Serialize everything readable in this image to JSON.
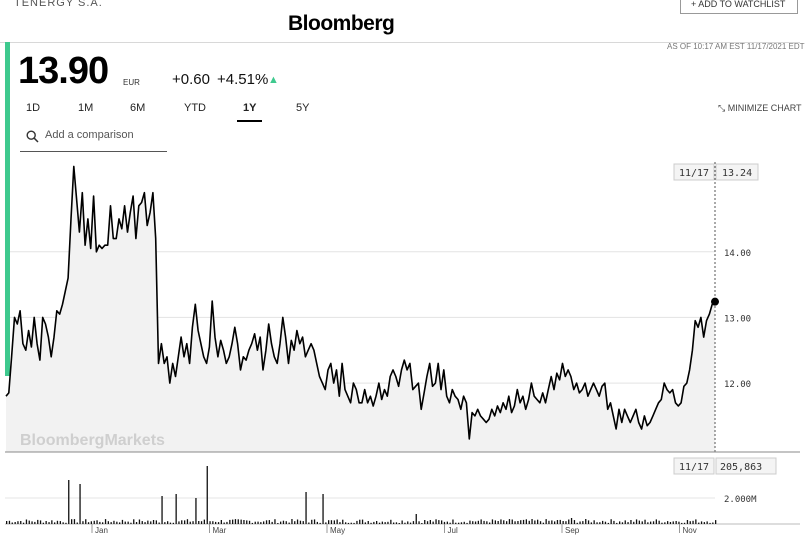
{
  "header": {
    "logo": "Bloomberg",
    "ticker_cut": "TENERGY S.A.",
    "watchlist_label": "+ ADD TO WATCHLIST",
    "as_of": "AS OF 10:17 AM EST 11/17/2021 EDT"
  },
  "quote": {
    "price": "13.90",
    "currency": "EUR",
    "change": "+0.60",
    "change_pct": "+4.51%",
    "up_color": "#3ec98e"
  },
  "tabs": [
    {
      "label": "1D"
    },
    {
      "label": "1M"
    },
    {
      "label": "6M"
    },
    {
      "label": "YTD"
    },
    {
      "label": "1Y",
      "active": true
    },
    {
      "label": "5Y"
    }
  ],
  "minimize_label": "MINIMIZE CHART",
  "search": {
    "placeholder": "Add a comparison"
  },
  "watermark": "BloombergMarkets",
  "chart_data": {
    "type": "line",
    "title": "",
    "y_ticks": [
      12.0,
      13.0,
      14.0
    ],
    "ylim": [
      10.95,
      15.55
    ],
    "x_ticks": [
      "Jan",
      "Mar",
      "May",
      "Jul",
      "Sep",
      "Nov"
    ],
    "cursor": {
      "date_label": "11/17",
      "price_label": "13.24",
      "volume_label": "205,863"
    },
    "price_series": [
      11.8,
      11.85,
      12.4,
      13.0,
      12.9,
      13.1,
      12.6,
      12.5,
      12.8,
      12.55,
      13.0,
      12.6,
      12.35,
      13.0,
      12.9,
      12.7,
      12.4,
      12.7,
      13.1,
      13.05,
      13.2,
      13.4,
      13.6,
      14.5,
      15.3,
      14.8,
      14.3,
      14.9,
      14.1,
      14.5,
      14.05,
      14.85,
      14.0,
      14.1,
      14.05,
      14.1,
      14.1,
      14.7,
      14.2,
      14.2,
      14.5,
      14.35,
      14.7,
      14.3,
      14.6,
      14.85,
      14.2,
      14.7,
      14.75,
      14.9,
      14.4,
      14.6,
      14.9,
      14.2,
      12.3,
      12.6,
      12.3,
      12.4,
      12.0,
      12.3,
      12.1,
      12.4,
      12.7,
      12.4,
      12.6,
      12.3,
      12.85,
      13.2,
      12.8,
      12.6,
      12.4,
      12.3,
      12.55,
      13.25,
      12.7,
      12.4,
      12.65,
      12.5,
      12.3,
      12.4,
      12.6,
      12.85,
      12.6,
      12.2,
      12.4,
      12.35,
      12.5,
      12.6,
      12.75,
      12.5,
      12.7,
      12.2,
      12.5,
      12.9,
      12.6,
      12.4,
      12.3,
      12.6,
      13.0,
      12.7,
      12.3,
      12.65,
      12.5,
      12.8,
      12.6,
      12.7,
      12.4,
      12.5,
      12.6,
      12.5,
      12.3,
      12.1,
      12.0,
      11.9,
      12.2,
      12.3,
      12.0,
      12.2,
      11.8,
      12.3,
      11.9,
      11.8,
      11.7,
      12.0,
      11.9,
      11.7,
      11.7,
      11.9,
      11.7,
      11.8,
      11.65,
      11.8,
      12.0,
      11.75,
      11.9,
      11.8,
      12.1,
      12.2,
      12.1,
      11.95,
      12.2,
      12.35,
      12.2,
      12.3,
      11.9,
      11.95,
      12.0,
      11.6,
      11.85,
      12.1,
      12.3,
      11.95,
      12.0,
      12.3,
      11.9,
      12.2,
      11.8,
      11.7,
      11.9,
      11.8,
      11.75,
      11.6,
      11.8,
      11.7,
      11.15,
      11.55,
      11.5,
      11.6,
      11.5,
      11.45,
      11.4,
      11.45,
      11.6,
      11.5,
      11.65,
      11.55,
      11.7,
      11.6,
      11.8,
      11.55,
      11.65,
      11.9,
      11.7,
      11.8,
      11.6,
      11.75,
      12.0,
      11.8,
      11.75,
      11.7,
      11.85,
      11.7,
      11.9,
      12.1,
      11.9,
      12.15,
      12.05,
      12.3,
      12.1,
      12.2,
      12.1,
      11.9,
      12.0,
      11.85,
      11.9,
      12.0,
      11.8,
      11.9,
      12.0,
      11.9,
      11.8,
      11.95,
      12.0,
      11.6,
      11.7,
      11.5,
      11.3,
      11.6,
      11.4,
      11.6,
      11.5,
      11.4,
      11.5,
      11.6,
      11.4,
      11.3,
      11.5,
      11.35,
      11.4,
      11.5,
      11.6,
      11.7,
      11.75,
      12.0,
      11.9,
      11.85,
      11.9,
      11.7,
      11.65,
      11.7,
      11.95,
      12.0,
      12.2,
      12.5,
      12.95,
      12.85,
      13.0,
      12.7,
      12.95,
      13.05,
      13.2,
      13.24
    ]
  }
}
